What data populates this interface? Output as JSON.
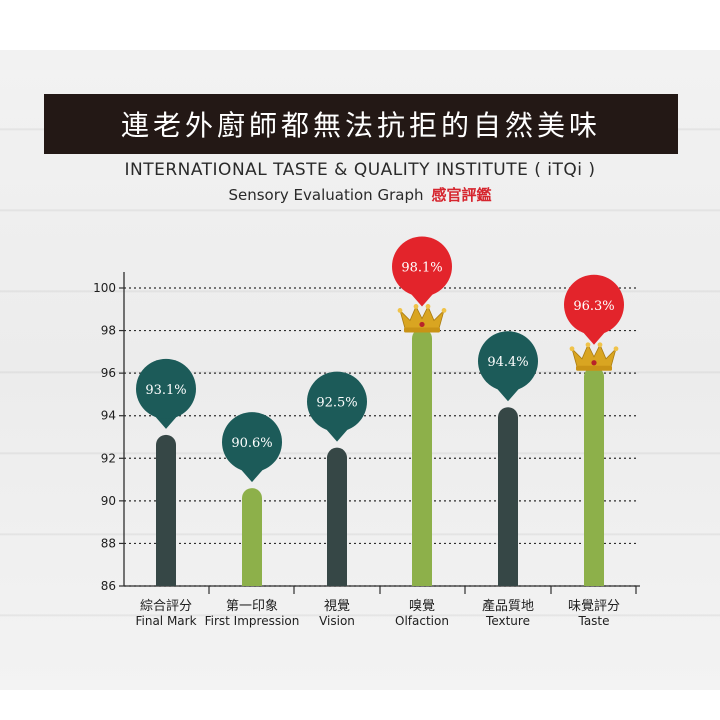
{
  "header": {
    "title": "連老外廚師都無法抗拒的自然美味",
    "subtitle": "INTERNATIONAL TASTE & QUALITY INSTITUTE ( iTQi )",
    "subtitle2": "Sensory Evaluation Graph",
    "subtitle2_cn": "感官評鑑"
  },
  "colors": {
    "dark_bar": "#364746",
    "green_bar": "#8db04a",
    "teal_pin": "#1c5b59",
    "red_pin": "#e3242b",
    "crown": "#d9a521"
  },
  "chart_data": {
    "type": "bar",
    "categories": [
      {
        "cn": "綜合評分",
        "en": "Final Mark"
      },
      {
        "cn": "第一印象",
        "en": "First Impression"
      },
      {
        "cn": "視覺",
        "en": "Vision"
      },
      {
        "cn": "嗅覺",
        "en": "Olfaction"
      },
      {
        "cn": "產品質地",
        "en": "Texture"
      },
      {
        "cn": "味覺評分",
        "en": "Taste"
      }
    ],
    "values": [
      93.1,
      90.6,
      92.5,
      98.1,
      94.4,
      96.3
    ],
    "labels": [
      "93.1%",
      "90.6%",
      "92.5%",
      "98.1%",
      "94.4%",
      "96.3%"
    ],
    "bar_colors": [
      "dark",
      "green",
      "dark",
      "green",
      "dark",
      "green"
    ],
    "pin_colors": [
      "teal",
      "teal",
      "teal",
      "red",
      "teal",
      "red"
    ],
    "crowns": [
      false,
      false,
      false,
      true,
      false,
      true
    ],
    "ylim": [
      86,
      100
    ],
    "yticks": [
      "86",
      "88",
      "90",
      "92",
      "94",
      "96",
      "98",
      "100"
    ],
    "grid": true
  }
}
